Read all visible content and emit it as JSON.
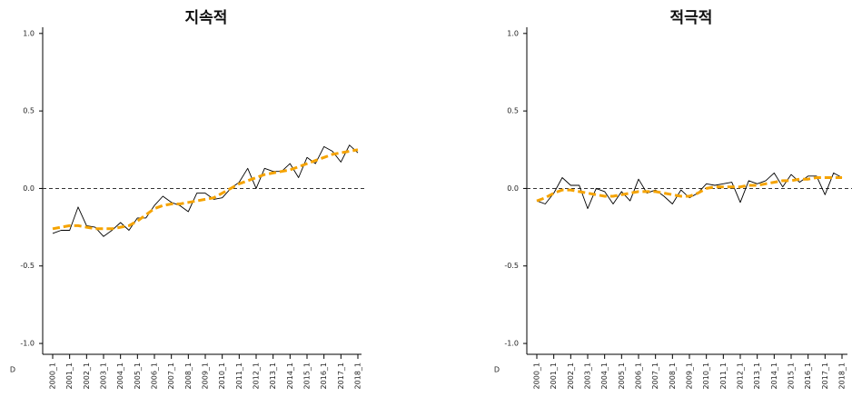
{
  "chart_data": [
    {
      "type": "line",
      "title": "지속적",
      "x_label": "D",
      "categories": [
        "2000_1",
        null,
        "2001_1",
        null,
        "2002_1",
        null,
        "2003_1",
        null,
        "2004_1",
        null,
        "2005_1",
        null,
        "2006_1",
        null,
        "2007_1",
        null,
        "2008_1",
        null,
        "2009_1",
        null,
        "2010_1",
        null,
        "2011_1",
        null,
        "2012_1",
        null,
        "2013_1",
        null,
        "2014_1",
        null,
        "2015_1",
        null,
        "2016_1",
        null,
        "2017_1",
        null,
        "2018_1"
      ],
      "series": [
        {
          "color": "#000000",
          "style": "solid",
          "values": [
            -0.29,
            -0.27,
            -0.27,
            -0.12,
            -0.24,
            -0.25,
            -0.31,
            -0.27,
            -0.22,
            -0.27,
            -0.19,
            -0.19,
            -0.11,
            -0.05,
            -0.09,
            -0.11,
            -0.15,
            -0.03,
            -0.03,
            -0.07,
            -0.06,
            0.0,
            0.04,
            0.13,
            0.0,
            0.13,
            0.11,
            0.11,
            0.16,
            0.07,
            0.2,
            0.16,
            0.27,
            0.24,
            0.17,
            0.28,
            0.23
          ]
        },
        {
          "color": "#f5a300",
          "style": "dashed",
          "values": [
            -0.26,
            -0.25,
            -0.24,
            -0.24,
            -0.25,
            -0.26,
            -0.26,
            -0.26,
            -0.25,
            -0.24,
            -0.21,
            -0.17,
            -0.13,
            -0.11,
            -0.1,
            -0.1,
            -0.09,
            -0.08,
            -0.07,
            -0.06,
            -0.03,
            0.0,
            0.03,
            0.05,
            0.07,
            0.09,
            0.1,
            0.11,
            0.12,
            0.14,
            0.16,
            0.18,
            0.2,
            0.22,
            0.23,
            0.24,
            0.25
          ]
        }
      ],
      "hline": 0,
      "ylim": [
        -1.07,
        1.04
      ],
      "yticks": [
        {
          "value": -1,
          "label": "-1.0"
        },
        -0.5,
        {
          "value": 0,
          "label": "0.0"
        },
        0.5,
        {
          "value": 1,
          "label": "1.0"
        }
      ]
    },
    {
      "type": "line",
      "title": "적극적",
      "x_label": "D",
      "categories": [
        "2000_1",
        null,
        "2001_1",
        null,
        "2002_1",
        null,
        "2003_1",
        null,
        "2004_1",
        null,
        "2005_1",
        null,
        "2006_1",
        null,
        "2007_1",
        null,
        "2008_1",
        null,
        "2009_1",
        null,
        "2010_1",
        null,
        "2011_1",
        null,
        "2012_1",
        null,
        "2013_1",
        null,
        "2014_1",
        null,
        "2015_1",
        null,
        "2016_1",
        null,
        "2017_1",
        null,
        "2018_1"
      ],
      "series": [
        {
          "color": "#000000",
          "style": "solid",
          "values": [
            -0.08,
            -0.1,
            -0.03,
            0.07,
            0.02,
            0.02,
            -0.13,
            0.0,
            -0.02,
            -0.1,
            -0.02,
            -0.08,
            0.06,
            -0.03,
            -0.01,
            -0.05,
            -0.1,
            -0.01,
            -0.06,
            -0.03,
            0.03,
            0.02,
            0.03,
            0.04,
            -0.09,
            0.05,
            0.03,
            0.05,
            0.1,
            0.01,
            0.09,
            0.04,
            0.08,
            0.08,
            -0.04,
            0.1,
            0.07
          ]
        },
        {
          "color": "#f5a300",
          "style": "dashed",
          "values": [
            -0.08,
            -0.06,
            -0.03,
            -0.01,
            -0.01,
            -0.02,
            -0.03,
            -0.04,
            -0.05,
            -0.05,
            -0.04,
            -0.03,
            -0.02,
            -0.02,
            -0.02,
            -0.03,
            -0.04,
            -0.05,
            -0.05,
            -0.03,
            0.0,
            0.01,
            0.01,
            0.01,
            0.01,
            0.02,
            0.02,
            0.03,
            0.04,
            0.05,
            0.05,
            0.06,
            0.06,
            0.07,
            0.07,
            0.07,
            0.07
          ]
        }
      ],
      "hline": 0,
      "ylim": [
        -1.07,
        1.04
      ],
      "yticks": [
        {
          "value": -1,
          "label": "-1.0"
        },
        -0.5,
        {
          "value": 0,
          "label": "0.0"
        },
        0.5,
        {
          "value": 1,
          "label": "1.0"
        }
      ]
    }
  ]
}
